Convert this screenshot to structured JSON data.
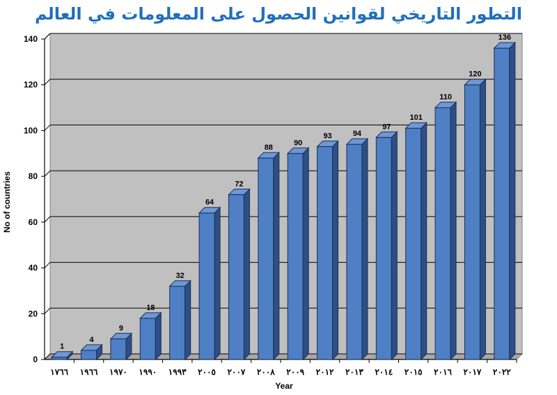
{
  "chart_data": {
    "type": "bar",
    "title": "التطور التاريخي لقوانين الحصول على المعلومات في العالم",
    "xlabel": "Year",
    "ylabel": "No of countries",
    "categories": [
      "١٧٦٦",
      "١٩٦٦",
      "١٩٧٠",
      "١٩٩٠",
      "١٩٩٣",
      "٢٠٠٥",
      "٢٠٠٧",
      "٢٠٠٨",
      "٢٠٠٩",
      "٢٠١٢",
      "٢٠١٣",
      "٢٠١٤",
      "٢٠١٥",
      "٢٠١٦",
      "٢٠١٧",
      "٢٠٢٢"
    ],
    "values": [
      1,
      4,
      9,
      18,
      32,
      64,
      72,
      88,
      90,
      93,
      94,
      97,
      101,
      110,
      120,
      136
    ],
    "ylim": [
      0,
      140
    ],
    "yticks": [
      0,
      20,
      40,
      60,
      80,
      100,
      120,
      140
    ],
    "grid": true,
    "colors": {
      "bar_front": "#4f7fc4",
      "bar_side": "#2d4f86",
      "bar_top": "#6f97d6",
      "plot_bg": "#c0c0c0",
      "title": "#1f6fc0"
    }
  }
}
